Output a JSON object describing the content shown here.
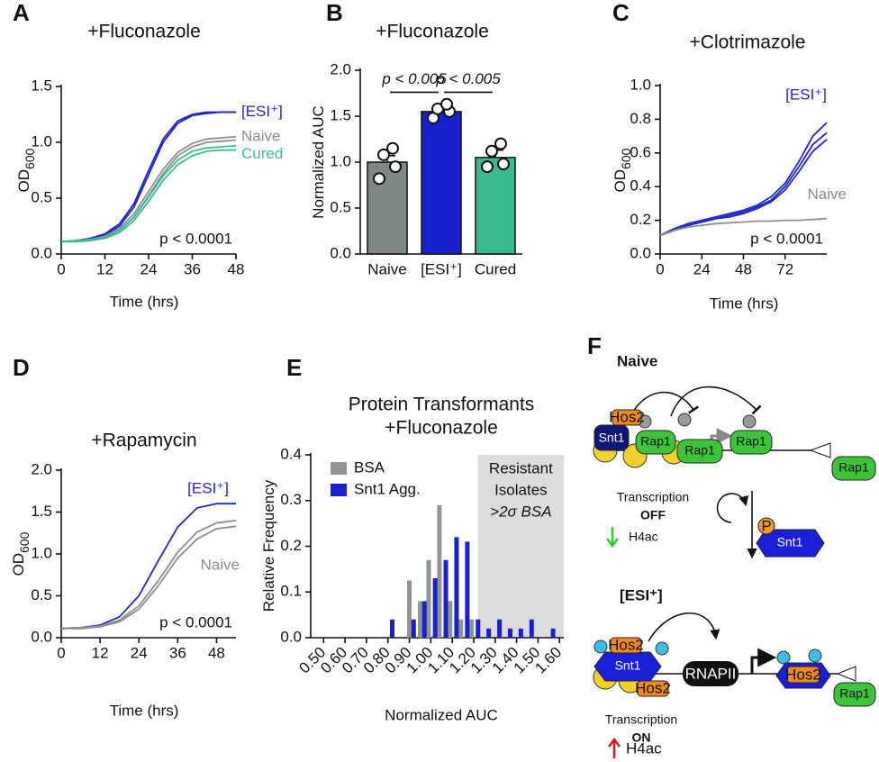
{
  "panel_letters": [
    "A",
    "B",
    "C",
    "D",
    "E",
    "F"
  ],
  "chart_data": [
    {
      "type": "line",
      "title": "+Fluconazole",
      "xlabel": "Time (hrs)",
      "ylabel": "OD",
      "ylabel_sub": "600",
      "x": [
        0,
        4,
        8,
        12,
        16,
        20,
        24,
        28,
        32,
        36,
        40,
        44,
        48
      ],
      "xlim": [
        0,
        48
      ],
      "xticks": [
        0,
        12,
        24,
        36,
        48
      ],
      "ylim": [
        0,
        1.5
      ],
      "yticks": [
        {
          "value": 0,
          "label": "0.0"
        },
        {
          "value": 0.5,
          "label": "0.5"
        },
        {
          "value": 1,
          "label": "1.0"
        },
        {
          "value": 1.5,
          "label": "1.5"
        }
      ],
      "annotation": "p < 0.0001",
      "series": [
        {
          "name": "[ESI⁺]",
          "color": "#1f26c9",
          "values": [
            0.11,
            0.12,
            0.14,
            0.18,
            0.27,
            0.45,
            0.75,
            1.03,
            1.19,
            1.25,
            1.27,
            1.27,
            1.27
          ]
        },
        {
          "color": "#1f26c9",
          "values": [
            0.11,
            0.12,
            0.13,
            0.17,
            0.25,
            0.42,
            0.71,
            1.0,
            1.17,
            1.24,
            1.26,
            1.27,
            1.27
          ]
        },
        {
          "name": "Naive",
          "color": "#8a8f8f",
          "values": [
            0.11,
            0.12,
            0.13,
            0.16,
            0.23,
            0.36,
            0.56,
            0.76,
            0.91,
            0.99,
            1.03,
            1.04,
            1.05
          ]
        },
        {
          "color": "#8a8f8f",
          "values": [
            0.11,
            0.12,
            0.13,
            0.15,
            0.21,
            0.33,
            0.52,
            0.72,
            0.88,
            0.96,
            1.0,
            1.01,
            1.02
          ]
        },
        {
          "name": "Cured",
          "color": "#3fb894",
          "values": [
            0.11,
            0.12,
            0.13,
            0.15,
            0.21,
            0.33,
            0.51,
            0.7,
            0.84,
            0.92,
            0.95,
            0.96,
            0.97
          ]
        },
        {
          "color": "#3fb894",
          "values": [
            0.11,
            0.11,
            0.12,
            0.14,
            0.19,
            0.3,
            0.47,
            0.66,
            0.8,
            0.88,
            0.92,
            0.93,
            0.93
          ]
        }
      ]
    },
    {
      "type": "bar",
      "title": "+Fluconazole",
      "ylabel": "Normalized AUC",
      "categories": [
        "Naive",
        "[ESI⁺]",
        "Cured"
      ],
      "values": [
        1.0,
        1.55,
        1.05
      ],
      "errors": [
        0.07,
        0.04,
        0.08
      ],
      "points": [
        [
          0.82,
          0.95,
          1.08,
          1.15
        ],
        [
          1.48,
          1.55,
          1.58,
          1.63
        ],
        [
          0.95,
          0.98,
          1.12,
          1.2
        ]
      ],
      "colors": [
        "#7d8886",
        "#1722cc",
        "#3cb98e"
      ],
      "ylim": [
        0,
        2
      ],
      "yticks": [
        {
          "value": 0,
          "label": "0.0"
        },
        {
          "value": 0.5,
          "label": "0.5"
        },
        {
          "value": 1,
          "label": "1.0"
        },
        {
          "value": 1.5,
          "label": "1.5"
        },
        {
          "value": 2,
          "label": "2.0"
        }
      ],
      "annotations": [
        "p < 0.005",
        "p < 0.005"
      ]
    },
    {
      "type": "line",
      "title": "+Clotrimazole",
      "xlabel": "Time (hrs)",
      "ylabel": "OD",
      "ylabel_sub": "600",
      "x": [
        0,
        8,
        16,
        24,
        32,
        40,
        48,
        56,
        64,
        72,
        80,
        88,
        96
      ],
      "xlim": [
        0,
        96
      ],
      "xticks": [
        0,
        24,
        48,
        72
      ],
      "ylim": [
        0,
        1
      ],
      "yticks": [
        {
          "value": 0,
          "label": "0.0"
        },
        0.2,
        0.4,
        0.6,
        0.8,
        {
          "value": 1,
          "label": "1.0"
        }
      ],
      "annotation": "p < 0.0001",
      "series": [
        {
          "name": "[ESI⁺]",
          "color": "#1f26c9",
          "values": [
            0.11,
            0.15,
            0.18,
            0.2,
            0.22,
            0.24,
            0.26,
            0.29,
            0.34,
            0.42,
            0.55,
            0.7,
            0.78
          ]
        },
        {
          "color": "#1f26c9",
          "values": [
            0.11,
            0.14,
            0.17,
            0.19,
            0.21,
            0.23,
            0.25,
            0.28,
            0.32,
            0.4,
            0.52,
            0.65,
            0.72
          ]
        },
        {
          "color": "#1f26c9",
          "values": [
            0.11,
            0.14,
            0.17,
            0.19,
            0.21,
            0.22,
            0.24,
            0.27,
            0.31,
            0.38,
            0.49,
            0.61,
            0.68
          ]
        },
        {
          "name": "Naive",
          "color": "#8a8f8f",
          "values": [
            0.11,
            0.14,
            0.16,
            0.17,
            0.18,
            0.185,
            0.19,
            0.195,
            0.195,
            0.2,
            0.2,
            0.205,
            0.21
          ]
        }
      ]
    },
    {
      "type": "line",
      "title": "+Rapamycin",
      "xlabel": "Time (hrs)",
      "ylabel": "OD",
      "ylabel_sub": "600",
      "x": [
        0,
        6,
        12,
        18,
        24,
        30,
        36,
        42,
        48,
        54
      ],
      "xlim": [
        0,
        54
      ],
      "xticks": [
        0,
        12,
        24,
        36,
        48
      ],
      "ylim": [
        0,
        2
      ],
      "yticks": [
        {
          "value": 0,
          "label": "0.0"
        },
        {
          "value": 0.5,
          "label": "0.5"
        },
        {
          "value": 1,
          "label": "1.0"
        },
        {
          "value": 1.5,
          "label": "1.5"
        },
        {
          "value": 2,
          "label": "2.0"
        }
      ],
      "annotation": "p < 0.0001",
      "series": [
        {
          "name": "[ESI⁺]",
          "color": "#1f26c9",
          "values": [
            0.11,
            0.12,
            0.15,
            0.25,
            0.5,
            0.92,
            1.32,
            1.55,
            1.6,
            1.6
          ]
        },
        {
          "name": "Naive",
          "color": "#8a8f8f",
          "values": [
            0.11,
            0.12,
            0.14,
            0.21,
            0.38,
            0.68,
            1.02,
            1.26,
            1.37,
            1.4
          ]
        },
        {
          "color": "#8a8f8f",
          "values": [
            0.11,
            0.11,
            0.13,
            0.19,
            0.34,
            0.62,
            0.95,
            1.18,
            1.3,
            1.33
          ]
        }
      ]
    },
    {
      "type": "bar",
      "title": "Protein Transformants",
      "subtitle": "+Fluconazole",
      "xlabel": "Normalized AUC",
      "ylabel": "Relative Frequency",
      "xlim": [
        0.44,
        1.62
      ],
      "xticks": [
        {
          "value": 0.5,
          "label": "0.50"
        },
        {
          "value": 0.6,
          "label": "0.60"
        },
        {
          "value": 0.7,
          "label": "0.70"
        },
        {
          "value": 0.8,
          "label": "0.80"
        },
        {
          "value": 0.9,
          "label": "0.90"
        },
        {
          "value": 1,
          "label": "1.00"
        },
        {
          "value": 1.1,
          "label": "1.10"
        },
        {
          "value": 1.2,
          "label": "1.20"
        },
        {
          "value": 1.3,
          "label": "1.30"
        },
        {
          "value": 1.4,
          "label": "1.40"
        },
        {
          "value": 1.5,
          "label": "1.50"
        },
        {
          "value": 1.6,
          "label": "1.60"
        }
      ],
      "ylim": [
        0,
        0.4
      ],
      "yticks": [
        {
          "value": 0,
          "label": "0.0"
        },
        0.1,
        0.2,
        0.3,
        0.4
      ],
      "shade": [
        1.22,
        1.62
      ],
      "shade_text": [
        "Resistant",
        "Isolates",
        ">2σ BSA"
      ],
      "series": [
        {
          "name": "BSA",
          "color": "#8f9694",
          "x": [
            0.9,
            0.95,
            0.99,
            1.04,
            1.09,
            1.14,
            1.19
          ],
          "values": [
            0.125,
            0.08,
            0.17,
            0.29,
            0.08,
            0.04,
            0.04
          ]
        },
        {
          "name": "Snt1 Agg.",
          "color": "#1a1fd0",
          "x": [
            0.82,
            0.92,
            0.97,
            1.02,
            1.07,
            1.12,
            1.17,
            1.22,
            1.27,
            1.32,
            1.37,
            1.42,
            1.47,
            1.57
          ],
          "values": [
            0.04,
            0.04,
            0.08,
            0.13,
            0.17,
            0.22,
            0.21,
            0.04,
            0.02,
            0.04,
            0.02,
            0.02,
            0.04,
            0.02
          ]
        }
      ]
    }
  ],
  "diagram": {
    "naive": {
      "title": "Naive",
      "snt1": "Snt1",
      "hos2": "Hos2",
      "rap1": [
        "Rap1",
        "Rap1",
        "Rap1",
        "Rap1"
      ],
      "status": "Transcription",
      "state": "OFF",
      "mark": "H4ac"
    },
    "phospho": {
      "p": "P",
      "protein": "Snt1"
    },
    "esi": {
      "title": "[ESI⁺]",
      "snt1": "Snt1",
      "hos2": [
        "Hos2",
        "Hos2",
        "Hos2"
      ],
      "rnapii": "RNAPII",
      "rap1": "Rap1",
      "status": "Transcription",
      "state": "ON",
      "mark": "H4ac"
    }
  }
}
